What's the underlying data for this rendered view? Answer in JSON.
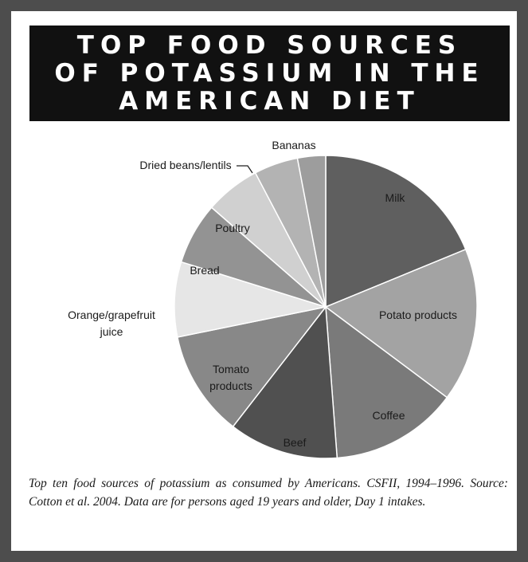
{
  "header": {
    "title": "TOP FOOD SOURCES OF POTASSIUM IN THE AMERICAN DIET"
  },
  "caption": "Top ten food sources of potassium as consumed by Americans. CSFII, 1994–1996. Source: Cotton et al. 2004. Data are for persons aged 19 years and older, Day 1 intakes.",
  "chart_data": {
    "type": "pie",
    "title": "",
    "start_angle_deg": 0,
    "direction": "clockwise",
    "slices": [
      {
        "label": "Milk",
        "value": 18.8,
        "color": "#5f5f5f"
      },
      {
        "label": "Potato products",
        "value": 16.4,
        "color": "#a3a3a3"
      },
      {
        "label": "Coffee",
        "value": 13.6,
        "color": "#7a7a7a"
      },
      {
        "label": "Beef",
        "value": 11.7,
        "color": "#505050"
      },
      {
        "label": "Tomato products",
        "value": 11.3,
        "color": "#888888"
      },
      {
        "label": "Orange/grapefruit juice",
        "value": 8.0,
        "color": "#e6e6e6"
      },
      {
        "label": "Bread",
        "value": 6.6,
        "color": "#939393"
      },
      {
        "label": "Poultry",
        "value": 5.9,
        "color": "#d0d0d0"
      },
      {
        "label": "Dried beans/lentils",
        "value": 4.7,
        "color": "#b3b3b3"
      },
      {
        "label": "Bananas",
        "value": 3.0,
        "color": "#9d9d9d"
      }
    ]
  }
}
